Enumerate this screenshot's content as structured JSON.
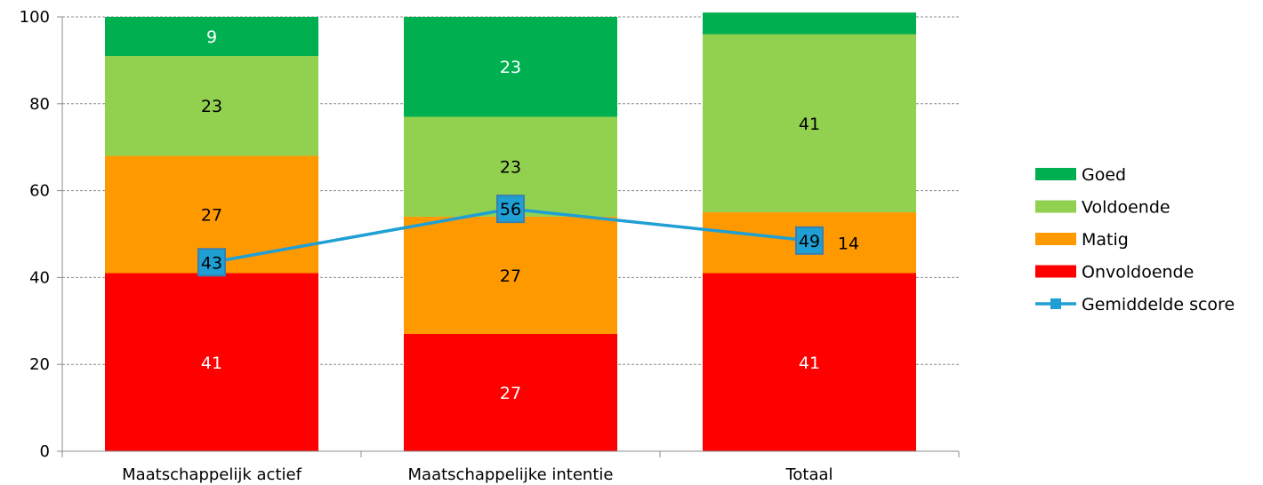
{
  "chart_data": {
    "type": "bar",
    "stacked": true,
    "categories": [
      "Maatschappelijk actief",
      "Maatschappelijke intentie",
      "Totaal"
    ],
    "ylim": [
      0,
      100
    ],
    "yticks": [
      "0",
      "20",
      "40",
      "60",
      "80",
      "100"
    ],
    "grid": true,
    "legend_position": "right",
    "series": [
      {
        "name": "Onvoldoende",
        "color": "#ff0000",
        "values": [
          41,
          27,
          41
        ],
        "labels": [
          "41",
          "27",
          "41"
        ],
        "label_color": "#ffffff"
      },
      {
        "name": "Matig",
        "color": "#ff9900",
        "values": [
          27,
          27,
          14
        ],
        "labels": [
          "27",
          "27",
          "14"
        ],
        "label_color": "#000000"
      },
      {
        "name": "Voldoende",
        "color": "#92d050",
        "values": [
          23,
          23,
          41
        ],
        "labels": [
          "23",
          "23",
          "41"
        ],
        "label_color": "#000000"
      },
      {
        "name": "Goed",
        "color": "#00b050",
        "values": [
          9,
          23,
          5
        ],
        "labels": [
          "9",
          "23",
          ""
        ],
        "label_color": "#ffffff"
      }
    ],
    "line_series": {
      "name": "Gemiddelde score",
      "color": "#1f9fd3",
      "values": [
        43.5,
        55.8,
        48.5
      ],
      "labels": [
        "43",
        "56",
        "49"
      ]
    },
    "legend_order": [
      "Goed",
      "Voldoende",
      "Matig",
      "Onvoldoende",
      "Gemiddelde score"
    ]
  }
}
